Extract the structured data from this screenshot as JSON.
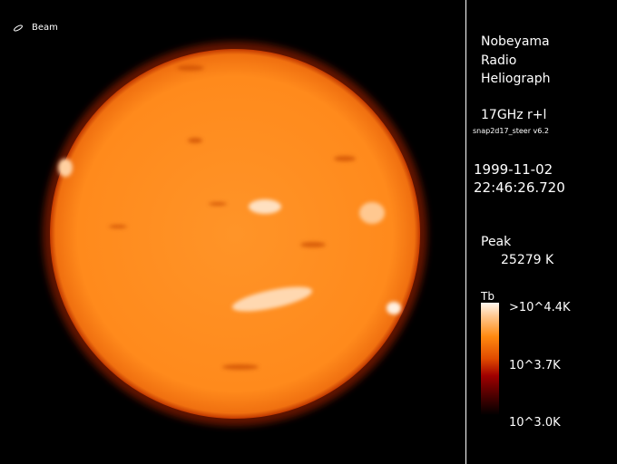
{
  "beam_label": "Beam",
  "instrument": [
    "Nobeyama",
    "Radio",
    "Heliograph"
  ],
  "frequency": "17GHz r+l",
  "software": "snap2d17_steer v6.2",
  "date": "1999-11-02",
  "time": "22:46:26.720",
  "peak_label": "Peak",
  "peak_value": "25279 K",
  "colorbar": {
    "title": "Tb",
    "ticks": [
      ">10^4.4K",
      "10^3.7K",
      "10^3.0K"
    ]
  },
  "colors": {
    "disk": "#ff8a1e",
    "limb": "#d03a00",
    "background": "#000000"
  }
}
